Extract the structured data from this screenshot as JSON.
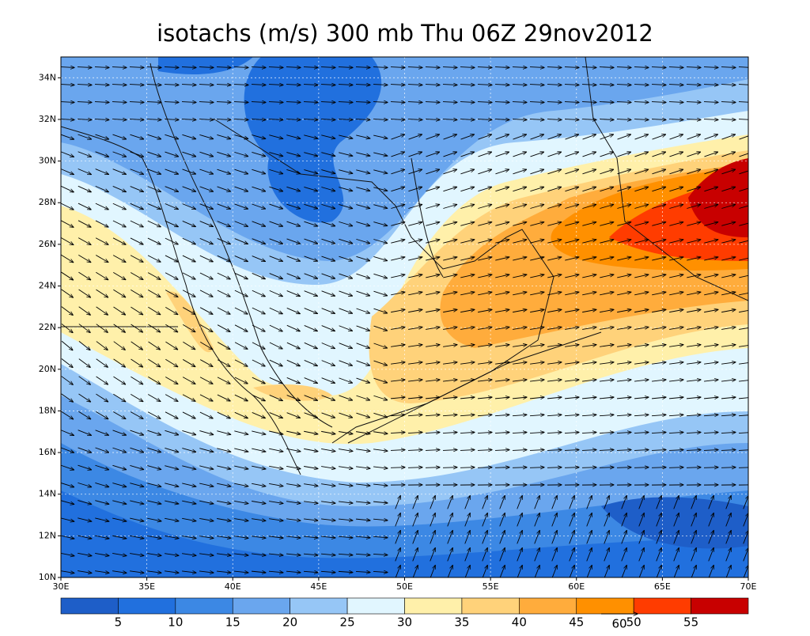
{
  "map": {
    "title": "isotachs (m/s) 300 mb Thu 06Z 29nov2012",
    "lon_range": [
      30,
      70
    ],
    "lat_range": [
      10,
      35
    ],
    "lon_ticks": [
      {
        "value": 30,
        "label": "30E"
      },
      {
        "value": 35,
        "label": "35E"
      },
      {
        "value": 40,
        "label": "40E"
      },
      {
        "value": 45,
        "label": "45E"
      },
      {
        "value": 50,
        "label": "50E"
      },
      {
        "value": 55,
        "label": "55E"
      },
      {
        "value": 60,
        "label": "60E"
      },
      {
        "value": 65,
        "label": "65E"
      },
      {
        "value": 70,
        "label": "70E"
      }
    ],
    "lat_ticks": [
      {
        "value": 10,
        "label": "10N"
      },
      {
        "value": 12,
        "label": "12N"
      },
      {
        "value": 14,
        "label": "14N"
      },
      {
        "value": 16,
        "label": "16N"
      },
      {
        "value": 18,
        "label": "18N"
      },
      {
        "value": 20,
        "label": "20N"
      },
      {
        "value": 22,
        "label": "22N"
      },
      {
        "value": 24,
        "label": "24N"
      },
      {
        "value": 26,
        "label": "26N"
      },
      {
        "value": 28,
        "label": "28N"
      },
      {
        "value": 30,
        "label": "30N"
      },
      {
        "value": 32,
        "label": "32N"
      },
      {
        "value": 34,
        "label": "34N"
      }
    ],
    "colorbar": {
      "levels": [
        5,
        10,
        15,
        20,
        25,
        30,
        35,
        40,
        45,
        50,
        55
      ],
      "colors": [
        "#1e5ec8",
        "#2170de",
        "#3c88e4",
        "#6aa6ee",
        "#96c6f6",
        "#e1f6ff",
        "#fff0aa",
        "#ffd27a",
        "#ffac3c",
        "#ff9000",
        "#ff3c00",
        "#c80000"
      ]
    },
    "reference_vector": 60
  }
}
